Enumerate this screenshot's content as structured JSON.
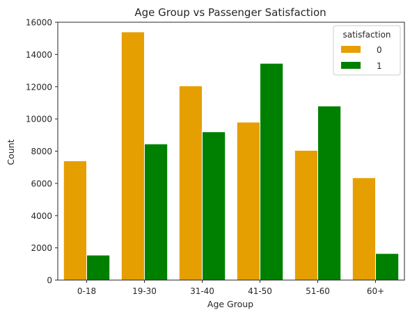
{
  "chart_data": {
    "type": "bar",
    "title": "Age Group vs Passenger Satisfaction",
    "xlabel": "Age Group",
    "ylabel": "Count",
    "categories": [
      "0-18",
      "19-30",
      "31-40",
      "41-50",
      "51-60",
      "60+"
    ],
    "series": [
      {
        "name": "0",
        "color": "#e69f00",
        "values": [
          7400,
          15400,
          12050,
          9800,
          8050,
          6350
        ]
      },
      {
        "name": "1",
        "color": "#008000",
        "values": [
          1550,
          8450,
          9200,
          13450,
          10800,
          1650
        ]
      }
    ],
    "ylim": [
      0,
      16000
    ],
    "yticks": [
      0,
      2000,
      4000,
      6000,
      8000,
      10000,
      12000,
      14000,
      16000
    ],
    "grid": false,
    "legend": {
      "title": "satisfaction",
      "placement": "top-right"
    }
  }
}
